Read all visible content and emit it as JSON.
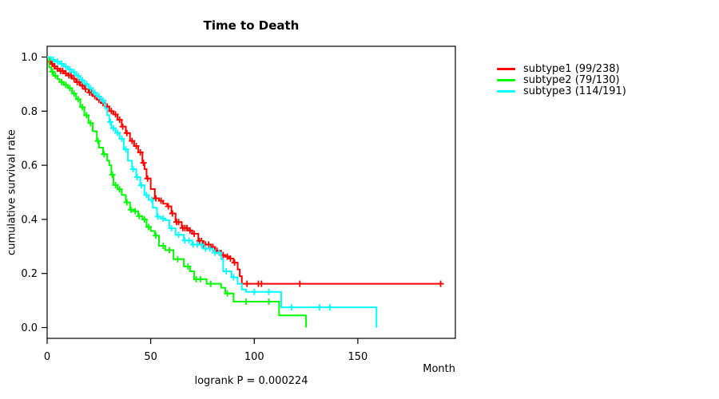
{
  "chart_data": {
    "type": "line",
    "variant": "kaplan-meier-step-curves",
    "title": "Time to Death",
    "xlabel": "Month",
    "ylabel": "cumulative survival rate",
    "annotation": "logrank P = 0.000224",
    "x_ticks": [
      0,
      50,
      100,
      150
    ],
    "y_ticks": [
      "0.0",
      "0.2",
      "0.4",
      "0.6",
      "0.8",
      "1.0"
    ],
    "xlim": [
      0,
      197
    ],
    "ylim": [
      0,
      1.0
    ],
    "grid": false,
    "legend_position": "right",
    "axis_color": "#000000",
    "series": [
      {
        "name": "subtype1",
        "label": "subtype1 (99/238)",
        "color": "#ff0000",
        "steps": [
          [
            0,
            1.0
          ],
          [
            1,
            0.983
          ],
          [
            2,
            0.974
          ],
          [
            3,
            0.966
          ],
          [
            4,
            0.957
          ],
          [
            6,
            0.949
          ],
          [
            8,
            0.94
          ],
          [
            10,
            0.932
          ],
          [
            12,
            0.92
          ],
          [
            14,
            0.907
          ],
          [
            16,
            0.894
          ],
          [
            18,
            0.882
          ],
          [
            20,
            0.869
          ],
          [
            22,
            0.856
          ],
          [
            24,
            0.843
          ],
          [
            26,
            0.83
          ],
          [
            28,
            0.817
          ],
          [
            30,
            0.8
          ],
          [
            32,
            0.788
          ],
          [
            34,
            0.768
          ],
          [
            36,
            0.743
          ],
          [
            38,
            0.719
          ],
          [
            40,
            0.69
          ],
          [
            42,
            0.671
          ],
          [
            44,
            0.648
          ],
          [
            46,
            0.609
          ],
          [
            47,
            0.586
          ],
          [
            48,
            0.551
          ],
          [
            50,
            0.512
          ],
          [
            52,
            0.478
          ],
          [
            54,
            0.469
          ],
          [
            56,
            0.458
          ],
          [
            58,
            0.448
          ],
          [
            60,
            0.422
          ],
          [
            62,
            0.39
          ],
          [
            65,
            0.368
          ],
          [
            68,
            0.359
          ],
          [
            70,
            0.347
          ],
          [
            73,
            0.32
          ],
          [
            75,
            0.307
          ],
          [
            79,
            0.298
          ],
          [
            81,
            0.284
          ],
          [
            84,
            0.268
          ],
          [
            86,
            0.262
          ],
          [
            88,
            0.255
          ],
          [
            90,
            0.24
          ],
          [
            92,
            0.215
          ],
          [
            93,
            0.19
          ],
          [
            94,
            0.162
          ],
          [
            190,
            0.162
          ]
        ],
        "censor_times": [
          1.5,
          2.5,
          3.5,
          5,
          6.5,
          7.5,
          9,
          10.5,
          11.5,
          13,
          14.5,
          15.5,
          17,
          18.5,
          20.5,
          21.5,
          23,
          25,
          27,
          29,
          31,
          33,
          35,
          36.5,
          38.5,
          41,
          43,
          45,
          46.5,
          48.5,
          52.5,
          55,
          58.5,
          60.5,
          62.5,
          63.5,
          65.5,
          66.5,
          67.5,
          69,
          71,
          73.5,
          74.5,
          75.5,
          76.5,
          78,
          80,
          82,
          85,
          87,
          88.5,
          90.5,
          96.5,
          102,
          103.5,
          122,
          190
        ]
      },
      {
        "name": "subtype2",
        "label": "subtype2 (79/130)",
        "color": "#00ff00",
        "steps": [
          [
            0,
            1.0
          ],
          [
            1,
            0.962
          ],
          [
            2,
            0.946
          ],
          [
            3,
            0.931
          ],
          [
            5,
            0.919
          ],
          [
            6,
            0.908
          ],
          [
            8,
            0.897
          ],
          [
            10,
            0.885
          ],
          [
            12,
            0.865
          ],
          [
            14,
            0.844
          ],
          [
            16,
            0.815
          ],
          [
            18,
            0.785
          ],
          [
            20,
            0.756
          ],
          [
            22,
            0.726
          ],
          [
            24,
            0.69
          ],
          [
            25,
            0.665
          ],
          [
            27,
            0.641
          ],
          [
            29,
            0.617
          ],
          [
            30,
            0.6
          ],
          [
            31,
            0.565
          ],
          [
            32,
            0.527
          ],
          [
            34,
            0.511
          ],
          [
            36,
            0.49
          ],
          [
            38,
            0.463
          ],
          [
            40,
            0.436
          ],
          [
            42,
            0.43
          ],
          [
            44,
            0.412
          ],
          [
            46,
            0.4
          ],
          [
            48,
            0.372
          ],
          [
            50,
            0.357
          ],
          [
            52,
            0.34
          ],
          [
            54,
            0.302
          ],
          [
            57,
            0.286
          ],
          [
            61,
            0.253
          ],
          [
            66,
            0.226
          ],
          [
            69,
            0.208
          ],
          [
            71,
            0.179
          ],
          [
            77,
            0.162
          ],
          [
            84,
            0.147
          ],
          [
            86,
            0.126
          ],
          [
            90,
            0.096
          ],
          [
            112,
            0.045
          ],
          [
            125,
            0
          ]
        ],
        "censor_times": [
          2.5,
          4,
          7,
          9,
          11,
          13,
          15,
          17,
          19,
          21,
          24.5,
          27.5,
          31.5,
          33,
          35,
          38.5,
          40.5,
          42.5,
          44.5,
          47,
          49,
          52.5,
          56,
          59,
          63,
          68,
          72,
          74,
          79,
          87,
          96,
          107
        ]
      },
      {
        "name": "subtype3",
        "label": "subtype3 (114/191)",
        "color": "#00ffff",
        "steps": [
          [
            0,
            1.0
          ],
          [
            2,
            0.99
          ],
          [
            4,
            0.983
          ],
          [
            6,
            0.975
          ],
          [
            8,
            0.965
          ],
          [
            10,
            0.954
          ],
          [
            12,
            0.944
          ],
          [
            14,
            0.93
          ],
          [
            16,
            0.914
          ],
          [
            18,
            0.9
          ],
          [
            20,
            0.885
          ],
          [
            22,
            0.868
          ],
          [
            24,
            0.854
          ],
          [
            26,
            0.839
          ],
          [
            28,
            0.81
          ],
          [
            29,
            0.785
          ],
          [
            30,
            0.76
          ],
          [
            31,
            0.737
          ],
          [
            33,
            0.72
          ],
          [
            35,
            0.698
          ],
          [
            37,
            0.659
          ],
          [
            39,
            0.617
          ],
          [
            41,
            0.586
          ],
          [
            43,
            0.556
          ],
          [
            45,
            0.526
          ],
          [
            47,
            0.49
          ],
          [
            49,
            0.472
          ],
          [
            51,
            0.443
          ],
          [
            53,
            0.41
          ],
          [
            55,
            0.403
          ],
          [
            57,
            0.397
          ],
          [
            59,
            0.367
          ],
          [
            62,
            0.343
          ],
          [
            66,
            0.322
          ],
          [
            70,
            0.307
          ],
          [
            75,
            0.292
          ],
          [
            80,
            0.277
          ],
          [
            84,
            0.253
          ],
          [
            85,
            0.208
          ],
          [
            89,
            0.186
          ],
          [
            92,
            0.162
          ],
          [
            94,
            0.141
          ],
          [
            96,
            0.132
          ],
          [
            113,
            0.075
          ],
          [
            159,
            0
          ]
        ],
        "censor_times": [
          3,
          5,
          7,
          9,
          11,
          13,
          15,
          17,
          19,
          21,
          23,
          25,
          27,
          30.5,
          32,
          34,
          36,
          38,
          41.5,
          43.5,
          45.5,
          48,
          50.5,
          53.5,
          56,
          60,
          63.5,
          66.5,
          68.5,
          70.5,
          72.5,
          74.5,
          76.5,
          78.5,
          81,
          83,
          86.5,
          90,
          100,
          107,
          118,
          131.5,
          136.5
        ]
      }
    ]
  }
}
